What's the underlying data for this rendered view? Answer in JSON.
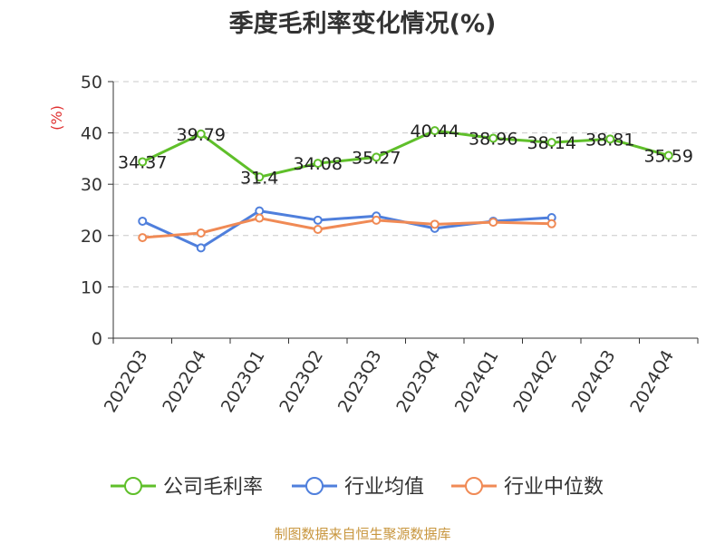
{
  "chart_data": {
    "type": "line",
    "title": "季度毛利率变化情况(%)",
    "ylabel": "(%)",
    "xlabel": "",
    "categories": [
      "2022Q3",
      "2022Q4",
      "2023Q1",
      "2023Q2",
      "2023Q3",
      "2023Q4",
      "2024Q1",
      "2024Q2",
      "2024Q3",
      "2024Q4"
    ],
    "ylim": [
      0,
      50
    ],
    "yticks": [
      0,
      10,
      20,
      30,
      40,
      50
    ],
    "grid": true,
    "legend_position": "bottom",
    "series": [
      {
        "name": "公司毛利率",
        "color": "#5fbf2a",
        "values": [
          34.37,
          39.79,
          31.4,
          34.08,
          35.27,
          40.44,
          38.96,
          38.14,
          38.81,
          35.59
        ],
        "labels": [
          "34.37",
          "39.79",
          "31.4",
          "34.08",
          "35.27",
          "40.44",
          "38.96",
          "38.14",
          "38.81",
          "35.59"
        ]
      },
      {
        "name": "行业均值",
        "color": "#4f7fdc",
        "values": [
          22.8,
          17.6,
          24.8,
          23.0,
          23.8,
          21.4,
          22.8,
          23.5,
          null,
          null
        ]
      },
      {
        "name": "行业中位数",
        "color": "#f08a55",
        "values": [
          19.6,
          20.5,
          23.4,
          21.2,
          23.0,
          22.2,
          22.6,
          22.3,
          null,
          null
        ]
      }
    ]
  },
  "source_note": "制图数据来自恒生聚源数据库"
}
